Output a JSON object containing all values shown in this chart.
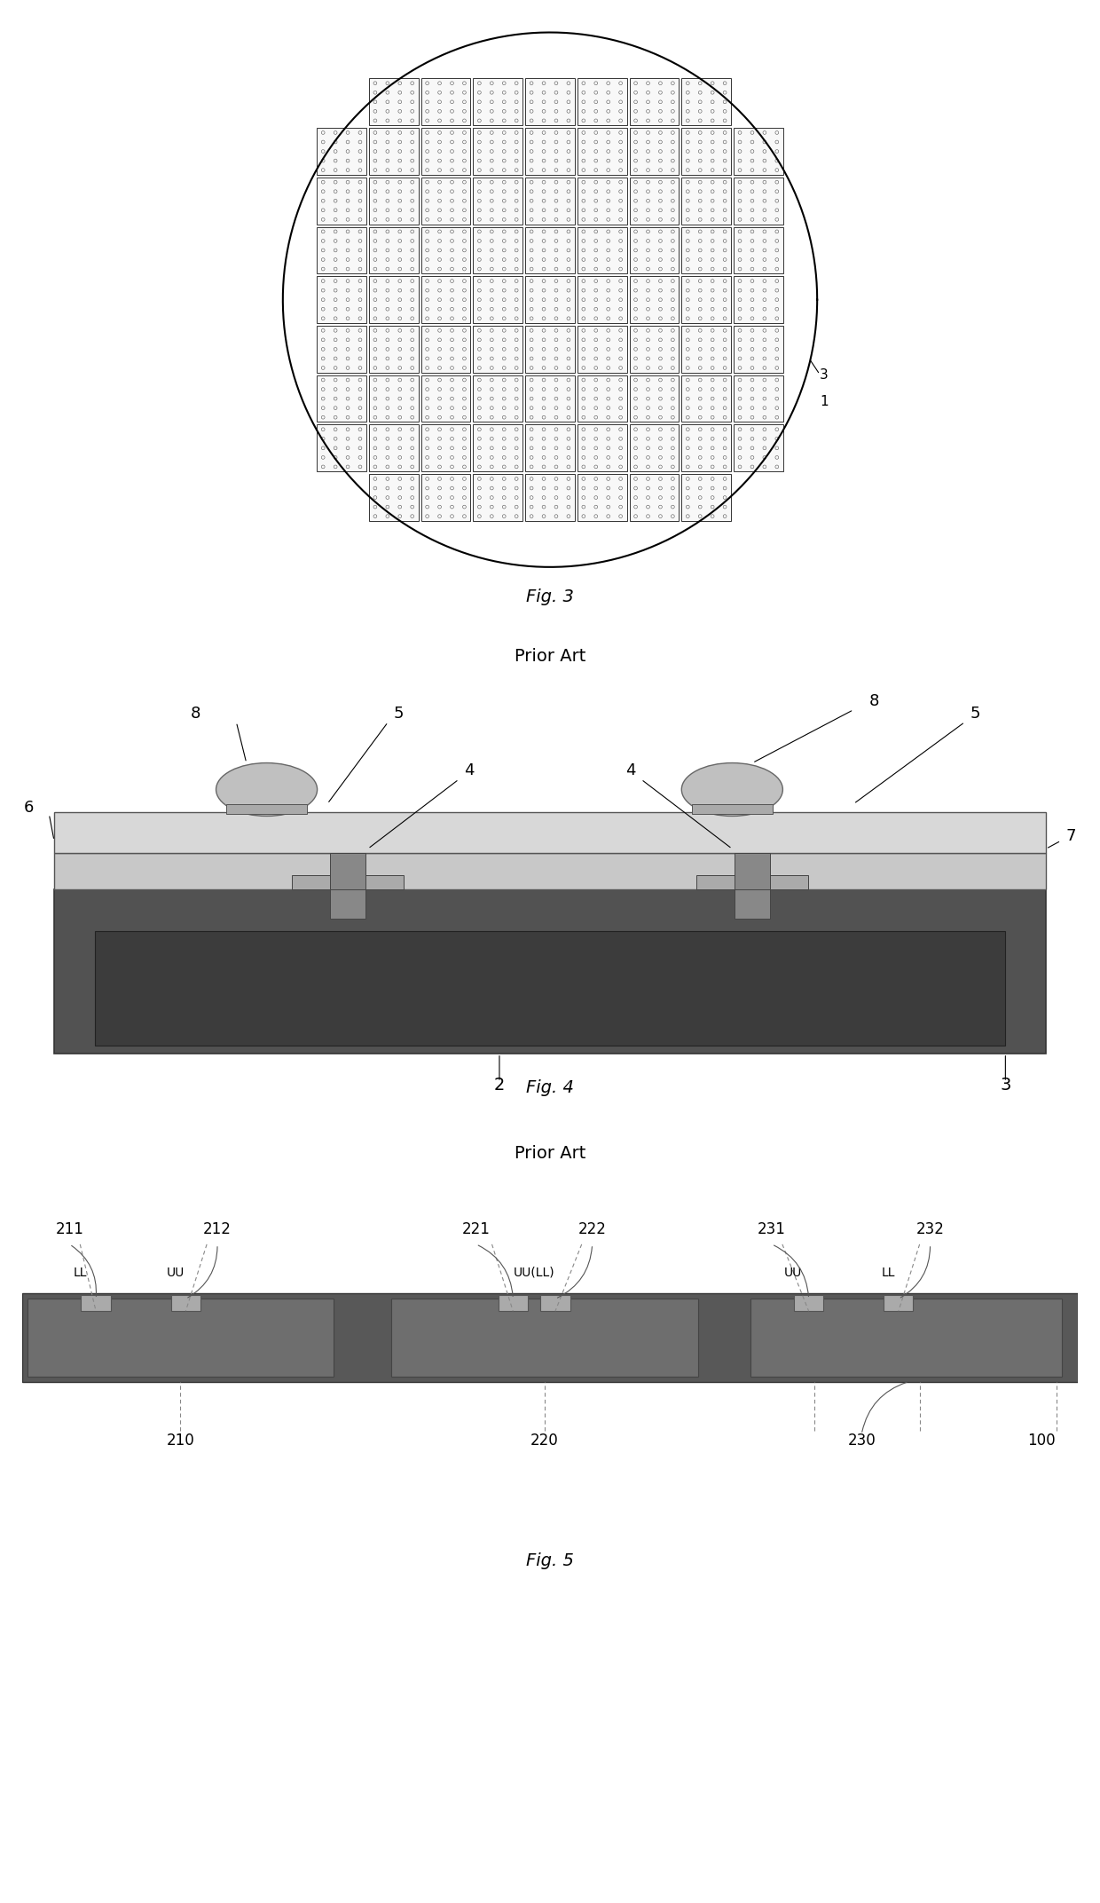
{
  "fig3_title": "Fig. 3",
  "fig3_subtitle": "Prior Art",
  "fig4_title": "Fig. 4",
  "fig4_subtitle": "Prior Art",
  "fig5_title": "Fig. 5",
  "background_color": "#ffffff",
  "chip_fill": "#f8f8f8",
  "chip_edge": "#333333",
  "wafer_circle_lw": 1.5,
  "bump_fill": "#c0c0c0",
  "bump_edge": "#666666",
  "layer_top_fill": "#cccccc",
  "layer_top_edge": "#555555",
  "layer_mid_fill": "#b8b8b8",
  "layer_mid_edge": "#555555",
  "layer_sub_fill": "#585858",
  "layer_sub_edge": "#333333",
  "layer_inner_fill": "#404040",
  "layer_inner_edge": "#222222",
  "pad_fill": "#999999",
  "pad_edge": "#444444",
  "strip_fill": "#585858",
  "strip_edge": "#333333",
  "chip_seg_fill": "#6a6a6a",
  "chip_seg_edge": "#444444",
  "small_pad_fill": "#bbbbbb",
  "small_pad_edge": "#666666",
  "label_color": "#000000",
  "leader_color": "#333333"
}
